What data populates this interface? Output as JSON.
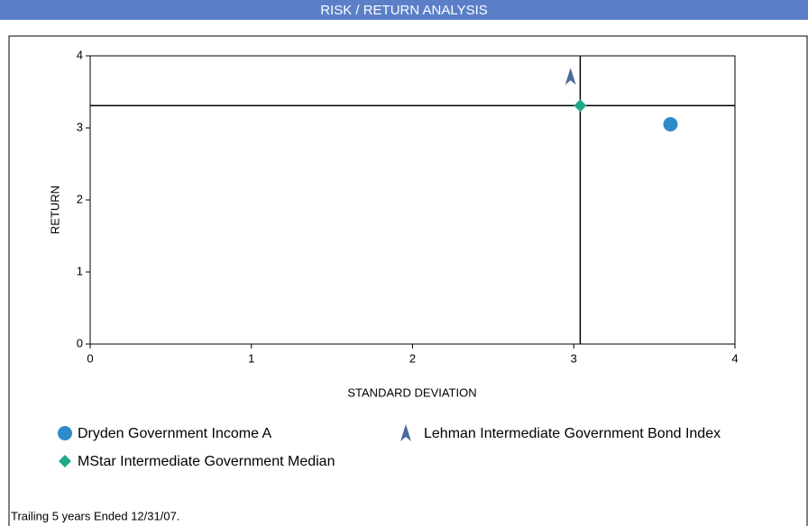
{
  "chart_data": {
    "type": "scatter",
    "title": "RISK / RETURN ANALYSIS",
    "xlabel": "STANDARD DEVIATION",
    "ylabel": "RETURN",
    "xlim": [
      0,
      4
    ],
    "ylim": [
      0,
      4
    ],
    "xticks": [
      0,
      1,
      2,
      3,
      4
    ],
    "yticks": [
      0,
      1,
      2,
      3,
      4
    ],
    "grid": false,
    "series": [
      {
        "name": "Dryden Government Income A",
        "color": "#2e8bc9",
        "marker": "circle",
        "x": [
          3.6
        ],
        "values": [
          3.05
        ]
      },
      {
        "name": "Lehman Intermediate Government Bond Index",
        "color": "#4a6aa0",
        "marker": "arrow",
        "x": [
          2.98
        ],
        "values": [
          3.71
        ]
      },
      {
        "name": "MStar Intermediate Government Median",
        "color": "#1fa88a",
        "marker": "diamond",
        "x": [
          3.04
        ],
        "values": [
          3.31
        ],
        "crosshair": true
      }
    ],
    "footnote": "Trailing 5 years Ended 12/31/07."
  }
}
